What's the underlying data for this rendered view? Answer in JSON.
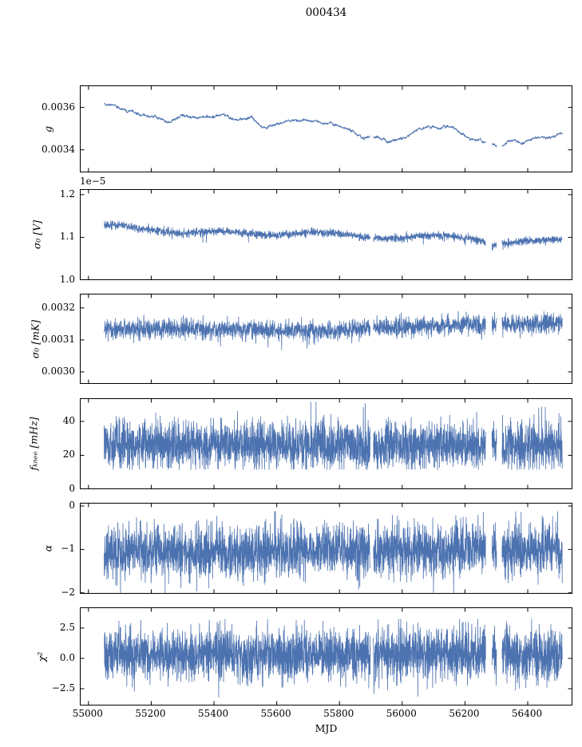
{
  "title": "000434",
  "xlabel": "MJD",
  "line_color": "#4c72b0",
  "axis_color": "#000000",
  "chart_data": {
    "type": "line",
    "title": "000434",
    "xlabel": "MJD",
    "x_range": [
      55050,
      56510
    ],
    "xlim": [
      54975,
      56545
    ],
    "xticks": [
      55000,
      55200,
      55400,
      55600,
      55800,
      56000,
      56200,
      56400
    ],
    "xtick_labels": [
      "55000",
      "55200",
      "55400",
      "55600",
      "55800",
      "56000",
      "56200",
      "56400"
    ],
    "gaps": [
      [
        55898,
        55908
      ],
      [
        56266,
        56286
      ],
      [
        56301,
        56318
      ]
    ],
    "legend": "none",
    "grid": false,
    "panels": [
      {
        "name": "g",
        "ylabel": "g",
        "ylim": [
          0.00329,
          0.0037
        ],
        "yticks": [
          {
            "v": 0.0034,
            "label": "0.0034"
          },
          {
            "v": 0.0036,
            "label": "0.0036"
          }
        ],
        "offset_text": "",
        "n": 1600,
        "gen": {
          "keypoints": [
            [
              55050,
              0.00362
            ],
            [
              55090,
              0.0036
            ],
            [
              55150,
              0.00357
            ],
            [
              55210,
              0.00356
            ],
            [
              55260,
              0.00353
            ],
            [
              55300,
              0.00356
            ],
            [
              55340,
              0.00355
            ],
            [
              55400,
              0.00356
            ],
            [
              55430,
              0.00357
            ],
            [
              55470,
              0.00354
            ],
            [
              55520,
              0.00355
            ],
            [
              55560,
              0.0035
            ],
            [
              55600,
              0.00352
            ],
            [
              55650,
              0.00354
            ],
            [
              55700,
              0.00354
            ],
            [
              55750,
              0.00353
            ],
            [
              55800,
              0.00351
            ],
            [
              55840,
              0.00349
            ],
            [
              55870,
              0.00346
            ],
            [
              55900,
              0.00347
            ],
            [
              55930,
              0.00346
            ],
            [
              55960,
              0.00344
            ],
            [
              56000,
              0.00345
            ],
            [
              56040,
              0.00349
            ],
            [
              56080,
              0.00351
            ],
            [
              56120,
              0.0035
            ],
            [
              56160,
              0.00351
            ],
            [
              56200,
              0.00346
            ],
            [
              56240,
              0.00344
            ],
            [
              56280,
              0.00343
            ],
            [
              56310,
              0.00342
            ],
            [
              56340,
              0.00344
            ],
            [
              56380,
              0.00344
            ],
            [
              56420,
              0.00345
            ],
            [
              56460,
              0.00346
            ],
            [
              56510,
              0.00347
            ]
          ],
          "noise_sd": 2e-06,
          "walk_step": 3e-06,
          "walk_damp": 0.92,
          "spike_prob": 0,
          "spike_scale": 0,
          "spike_sign": "down",
          "clamp": [
            0.00334,
            0.00366
          ]
        },
        "seed": 11
      },
      {
        "name": "sigma0_V",
        "ylabel": "σ₀ [V]",
        "ylim": [
          9.98e-06,
          1.211e-05
        ],
        "yticks": [
          {
            "v": 1e-05,
            "label": "1.0"
          },
          {
            "v": 1.1e-05,
            "label": "1.1"
          },
          {
            "v": 1.2e-05,
            "label": "1.2"
          }
        ],
        "offset_text": "1e−5",
        "n": 2600,
        "gen": {
          "keypoints": [
            [
              55050,
              1.128e-05
            ],
            [
              55100,
              1.13e-05
            ],
            [
              55150,
              1.122e-05
            ],
            [
              55200,
              1.118e-05
            ],
            [
              55250,
              1.112e-05
            ],
            [
              55300,
              1.108e-05
            ],
            [
              55350,
              1.113e-05
            ],
            [
              55420,
              1.115e-05
            ],
            [
              55480,
              1.112e-05
            ],
            [
              55540,
              1.107e-05
            ],
            [
              55600,
              1.104e-05
            ],
            [
              55660,
              1.109e-05
            ],
            [
              55720,
              1.112e-05
            ],
            [
              55780,
              1.11e-05
            ],
            [
              55840,
              1.105e-05
            ],
            [
              55900,
              1.1e-05
            ],
            [
              55950,
              1.097e-05
            ],
            [
              56000,
              1.098e-05
            ],
            [
              56060,
              1.104e-05
            ],
            [
              56120,
              1.105e-05
            ],
            [
              56180,
              1.1e-05
            ],
            [
              56240,
              1.095e-05
            ],
            [
              56280,
              1.08e-05
            ],
            [
              56320,
              1.085e-05
            ],
            [
              56380,
              1.09e-05
            ],
            [
              56440,
              1.094e-05
            ],
            [
              56510,
              1.096e-05
            ]
          ],
          "noise_sd": 4.5e-08,
          "walk_step": 0,
          "walk_damp": 1,
          "spike_prob": 0.004,
          "spike_scale": -2.5e-07,
          "spike_sign": "down",
          "clamp": [
            1.055e-05,
            1.15e-05
          ]
        },
        "seed": 22
      },
      {
        "name": "sigma0_mK",
        "ylabel": "σ₀ [mK]",
        "ylim": [
          0.00296,
          0.003242
        ],
        "yticks": [
          {
            "v": 0.003,
            "label": "0.0030"
          },
          {
            "v": 0.0031,
            "label": "0.0031"
          },
          {
            "v": 0.0032,
            "label": "0.0032"
          }
        ],
        "offset_text": "",
        "n": 2600,
        "gen": {
          "keypoints": [
            [
              55050,
              0.003132
            ],
            [
              55300,
              0.003135
            ],
            [
              55600,
              0.00313
            ],
            [
              55800,
              0.003128
            ],
            [
              55900,
              0.003138
            ],
            [
              56000,
              0.00314
            ],
            [
              56100,
              0.003142
            ],
            [
              56200,
              0.003148
            ],
            [
              56300,
              0.00315
            ],
            [
              56400,
              0.003148
            ],
            [
              56510,
              0.003155
            ]
          ],
          "noise_sd": 1.5e-05,
          "walk_step": 0,
          "walk_damp": 1,
          "spike_prob": 0.004,
          "spike_scale": -6e-05,
          "spike_sign": "down",
          "clamp": [
            0.00302,
            0.003215
          ]
        },
        "seed": 33
      },
      {
        "name": "f_knee",
        "ylabel": "fₖₙₑₑ [mHz]",
        "ylim": [
          -0.5,
          53.2
        ],
        "yticks": [
          {
            "v": 0,
            "label": "0"
          },
          {
            "v": 20,
            "label": "20"
          },
          {
            "v": 40,
            "label": "40"
          }
        ],
        "offset_text": "",
        "n": 3000,
        "gen": {
          "keypoints": [
            [
              55050,
              26
            ],
            [
              56510,
              26
            ]
          ],
          "noise_sd": 7,
          "walk_step": 0,
          "walk_damp": 1,
          "spike_prob": 0.01,
          "spike_scale": 18,
          "spike_sign": "up",
          "clamp": [
            11.5,
            51.5
          ]
        },
        "seed": 44
      },
      {
        "name": "alpha",
        "ylabel": "α",
        "ylim": [
          -2.04,
          0.055
        ],
        "yticks": [
          {
            "v": -2,
            "label": "−2"
          },
          {
            "v": -1,
            "label": "−1"
          },
          {
            "v": 0,
            "label": "0"
          }
        ],
        "offset_text": "",
        "n": 3000,
        "gen": {
          "keypoints": [
            [
              55050,
              -1.05
            ],
            [
              56510,
              -1.02
            ]
          ],
          "noise_sd": 0.3,
          "walk_step": 0,
          "walk_damp": 1,
          "spike_prob": 0.006,
          "spike_scale": -0.55,
          "spike_sign": "down",
          "clamp": [
            -2.0,
            -0.12
          ]
        },
        "seed": 55
      },
      {
        "name": "chi2",
        "ylabel": "χ²",
        "ylim": [
          -3.95,
          4.14
        ],
        "yticks": [
          {
            "v": -2.5,
            "label": "−2.5"
          },
          {
            "v": 0.0,
            "label": "0.0"
          },
          {
            "v": 2.5,
            "label": "2.5"
          }
        ],
        "offset_text": "",
        "n": 3200,
        "gen": {
          "keypoints": [
            [
              55050,
              0.3
            ],
            [
              56510,
              0.3
            ]
          ],
          "noise_sd": 1.05,
          "walk_step": 0,
          "walk_damp": 1,
          "spike_prob": 0.004,
          "spike_scale": 2.0,
          "spike_sign": "both",
          "clamp": [
            -3.35,
            3.25
          ]
        },
        "seed": 66
      }
    ]
  }
}
